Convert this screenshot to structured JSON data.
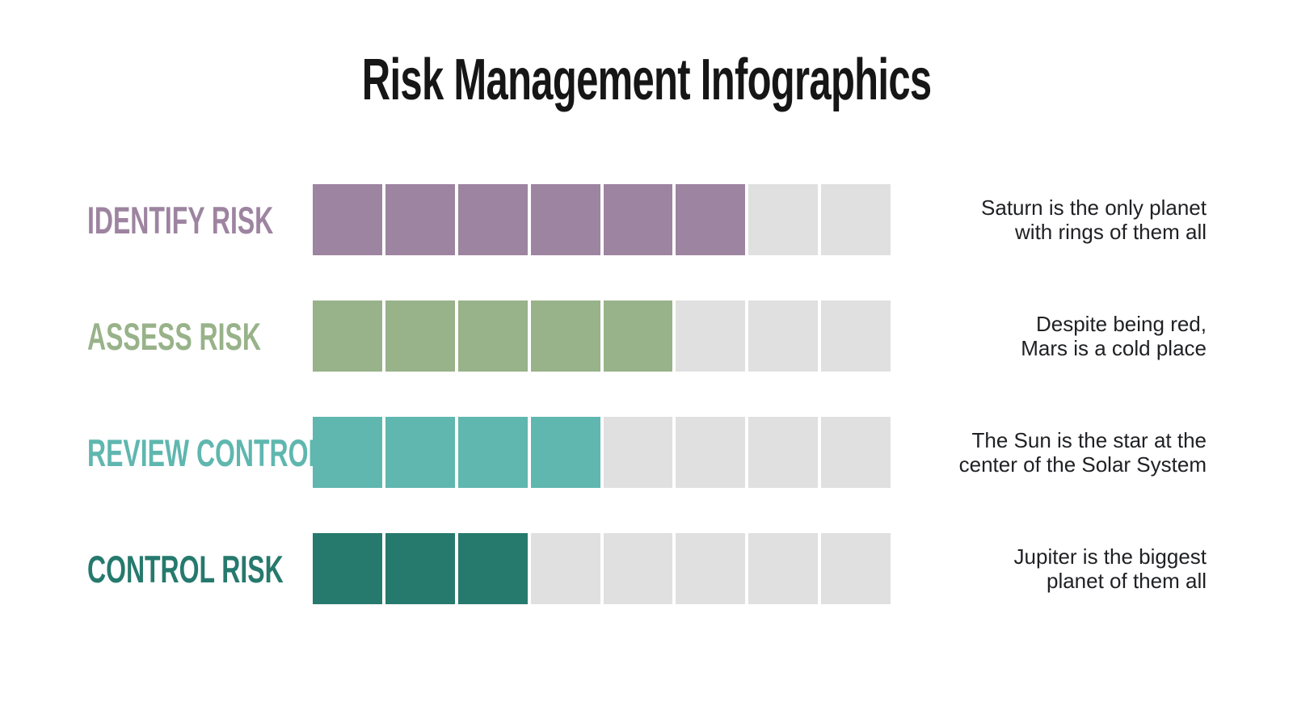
{
  "title": "Risk Management Infographics",
  "colors": {
    "background": "#ffffff",
    "title_text": "#161616",
    "description_text": "#202124",
    "empty_segment": "#e0e0e0"
  },
  "rows": [
    {
      "label": "IDENTIFY RISK",
      "color": "#9d84a0",
      "filled": 6,
      "total": 8,
      "description": "Saturn is the only planet\nwith rings of them all"
    },
    {
      "label": "ASSESS RISK",
      "color": "#98b289",
      "filled": 5,
      "total": 8,
      "description": "Despite being red,\nMars is a cold place"
    },
    {
      "label": "REVIEW CONTROL",
      "color": "#5fb7af",
      "filled": 4,
      "total": 8,
      "description": "The Sun is the star at the\ncenter of the Solar System"
    },
    {
      "label": "CONTROL RISK",
      "color": "#26796d",
      "filled": 3,
      "total": 8,
      "description": "Jupiter is the biggest\nplanet of them all"
    }
  ],
  "chart_data": {
    "type": "bar",
    "orientation": "horizontal",
    "title": "Risk Management Infographics",
    "categories": [
      "IDENTIFY RISK",
      "ASSESS RISK",
      "REVIEW CONTROL",
      "CONTROL RISK"
    ],
    "values": [
      6,
      5,
      4,
      3
    ],
    "value_max": 8,
    "units": "filled segments out of 8",
    "series_colors": [
      "#9d84a0",
      "#98b289",
      "#5fb7af",
      "#26796d"
    ],
    "empty_color": "#e0e0e0",
    "annotations": [
      "Saturn is the only planet with rings of them all",
      "Despite being red, Mars is a cold place",
      "The Sun is the star at the center of the Solar System",
      "Jupiter is the biggest planet of them all"
    ],
    "legend": false,
    "grid": false
  }
}
